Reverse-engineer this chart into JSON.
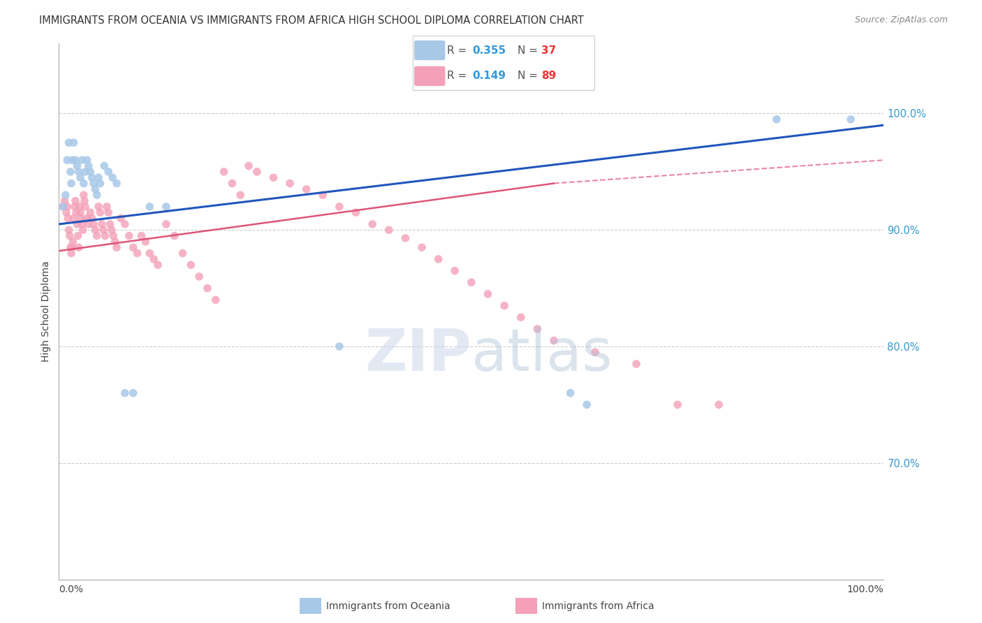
{
  "title": "IMMIGRANTS FROM OCEANIA VS IMMIGRANTS FROM AFRICA HIGH SCHOOL DIPLOMA CORRELATION CHART",
  "source": "Source: ZipAtlas.com",
  "ylabel": "High School Diploma",
  "y_ticks": [
    0.7,
    0.8,
    0.9,
    1.0
  ],
  "y_tick_labels": [
    "70.0%",
    "80.0%",
    "90.0%",
    "100.0%"
  ],
  "x_range": [
    0.0,
    1.0
  ],
  "y_range": [
    0.6,
    1.06
  ],
  "oceania_color": "#a8c8e8",
  "africa_color": "#f4a0b8",
  "trendline_oceania_color": "#2255bb",
  "trendline_africa_color": "#dd5577",
  "background_color": "#ffffff",
  "grid_color": "#cccccc",
  "oceania_x": [
    0.005,
    0.008,
    0.01,
    0.012,
    0.014,
    0.015,
    0.016,
    0.018,
    0.02,
    0.022,
    0.024,
    0.026,
    0.028,
    0.03,
    0.032,
    0.034,
    0.036,
    0.038,
    0.04,
    0.042,
    0.044,
    0.046,
    0.048,
    0.05,
    0.055,
    0.06,
    0.065,
    0.07,
    0.08,
    0.09,
    0.11,
    0.13,
    0.34,
    0.62,
    0.64,
    0.87,
    0.96
  ],
  "oceania_y": [
    0.92,
    0.93,
    0.96,
    0.975,
    0.95,
    0.94,
    0.96,
    0.975,
    0.96,
    0.955,
    0.95,
    0.945,
    0.96,
    0.94,
    0.95,
    0.96,
    0.955,
    0.95,
    0.945,
    0.94,
    0.935,
    0.93,
    0.945,
    0.94,
    0.955,
    0.95,
    0.945,
    0.94,
    0.76,
    0.76,
    0.92,
    0.92,
    0.8,
    0.76,
    0.75,
    0.995,
    0.995
  ],
  "africa_x": [
    0.005,
    0.007,
    0.009,
    0.01,
    0.011,
    0.012,
    0.013,
    0.014,
    0.015,
    0.016,
    0.017,
    0.018,
    0.019,
    0.02,
    0.021,
    0.022,
    0.023,
    0.024,
    0.025,
    0.026,
    0.027,
    0.028,
    0.029,
    0.03,
    0.031,
    0.032,
    0.034,
    0.036,
    0.038,
    0.04,
    0.042,
    0.044,
    0.046,
    0.048,
    0.05,
    0.052,
    0.054,
    0.056,
    0.058,
    0.06,
    0.062,
    0.064,
    0.066,
    0.068,
    0.07,
    0.075,
    0.08,
    0.085,
    0.09,
    0.095,
    0.1,
    0.105,
    0.11,
    0.115,
    0.12,
    0.13,
    0.14,
    0.15,
    0.16,
    0.17,
    0.18,
    0.19,
    0.2,
    0.21,
    0.22,
    0.23,
    0.24,
    0.26,
    0.28,
    0.3,
    0.32,
    0.34,
    0.36,
    0.38,
    0.4,
    0.42,
    0.44,
    0.46,
    0.48,
    0.5,
    0.52,
    0.54,
    0.56,
    0.58,
    0.6,
    0.65,
    0.7,
    0.75,
    0.8
  ],
  "africa_y": [
    0.92,
    0.925,
    0.915,
    0.92,
    0.91,
    0.9,
    0.895,
    0.885,
    0.88,
    0.885,
    0.89,
    0.91,
    0.92,
    0.925,
    0.915,
    0.905,
    0.895,
    0.885,
    0.92,
    0.915,
    0.91,
    0.905,
    0.9,
    0.93,
    0.925,
    0.92,
    0.91,
    0.905,
    0.915,
    0.91,
    0.905,
    0.9,
    0.895,
    0.92,
    0.915,
    0.905,
    0.9,
    0.895,
    0.92,
    0.915,
    0.905,
    0.9,
    0.895,
    0.89,
    0.885,
    0.91,
    0.905,
    0.895,
    0.885,
    0.88,
    0.895,
    0.89,
    0.88,
    0.875,
    0.87,
    0.905,
    0.895,
    0.88,
    0.87,
    0.86,
    0.85,
    0.84,
    0.95,
    0.94,
    0.93,
    0.955,
    0.95,
    0.945,
    0.94,
    0.935,
    0.93,
    0.92,
    0.915,
    0.905,
    0.9,
    0.893,
    0.885,
    0.875,
    0.865,
    0.855,
    0.845,
    0.835,
    0.825,
    0.815,
    0.805,
    0.795,
    0.785,
    0.75,
    0.75
  ],
  "trendline_oceania": [
    0.0,
    1.0,
    0.905,
    0.99
  ],
  "trendline_africa_solid": [
    0.0,
    0.6,
    0.882,
    0.94
  ],
  "trendline_africa_dashed": [
    0.6,
    1.0,
    0.94,
    0.96
  ]
}
